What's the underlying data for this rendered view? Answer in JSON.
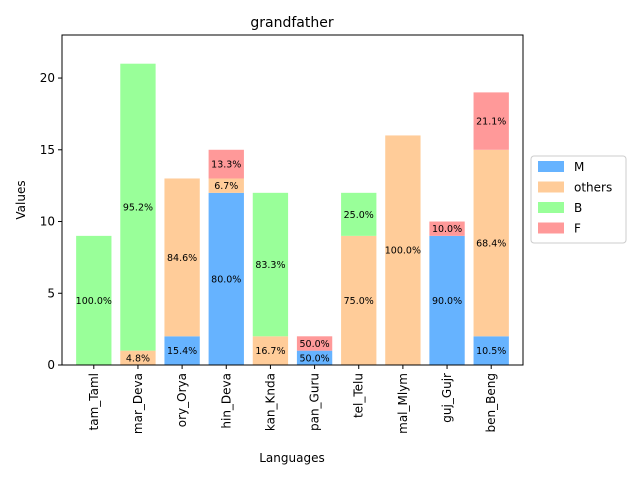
{
  "chart_data": {
    "type": "bar",
    "stacked": true,
    "title": "grandfather",
    "xlabel": "Languages",
    "ylabel": "Values",
    "ylim": [
      0,
      23
    ],
    "yticks": [
      0,
      5,
      10,
      15,
      20
    ],
    "categories": [
      "tam_Taml",
      "mar_Deva",
      "ory_Orya",
      "hin_Deva",
      "kan_Knda",
      "pan_Guru",
      "tel_Telu",
      "mal_Mlym",
      "guj_Gujr",
      "ben_Beng"
    ],
    "series": [
      {
        "name": "M",
        "color": "#66b3ff",
        "values": [
          0,
          0,
          2,
          12,
          0,
          1,
          0,
          0,
          9,
          2
        ]
      },
      {
        "name": "others",
        "color": "#ffcc99",
        "values": [
          0,
          1,
          11,
          1,
          2,
          0,
          9,
          16,
          0,
          13
        ]
      },
      {
        "name": "B",
        "color": "#99ff99",
        "values": [
          9,
          20,
          0,
          0,
          10,
          0,
          3,
          0,
          0,
          0
        ]
      },
      {
        "name": "F",
        "color": "#ff9999",
        "values": [
          0,
          0,
          0,
          2,
          0,
          1,
          0,
          0,
          1,
          4
        ]
      }
    ],
    "legend_position": "center-right",
    "grid": false
  }
}
